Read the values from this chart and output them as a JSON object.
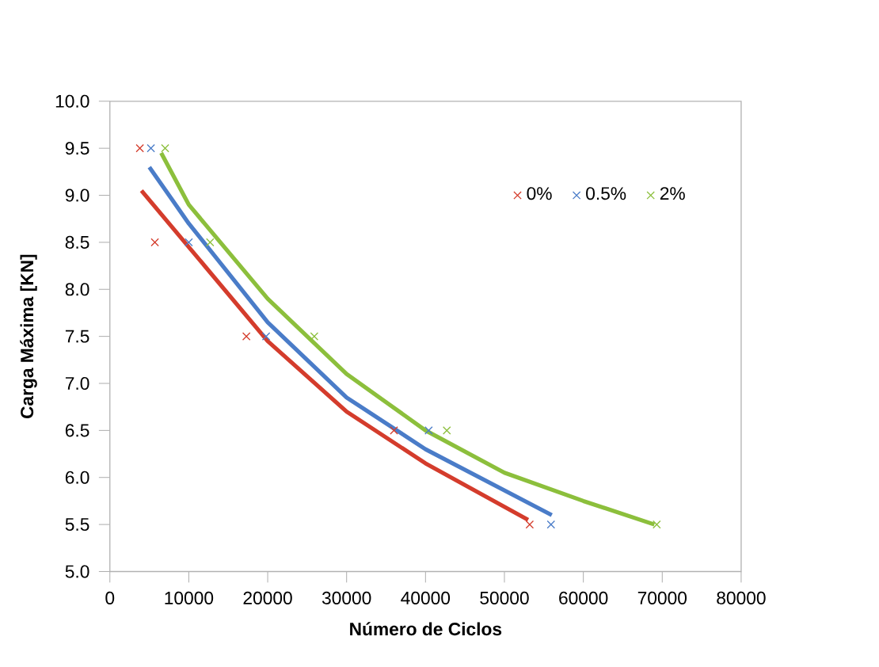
{
  "chart_data": {
    "type": "scatter",
    "xlabel": "Número de Ciclos",
    "ylabel": "Carga Máxima [KN]",
    "marker": "cross",
    "legend": "top right",
    "grid": false,
    "xlim": [
      0,
      80000
    ],
    "xticks": [
      0,
      10000,
      20000,
      30000,
      40000,
      50000,
      60000,
      70000,
      80000
    ],
    "ylim": [
      5,
      10
    ],
    "yticks": [
      {
        "value": 5,
        "label": "5.0"
      },
      {
        "value": 5.5,
        "label": "5.5"
      },
      {
        "value": 6,
        "label": "6.0"
      },
      {
        "value": 6.5,
        "label": "6.5"
      },
      {
        "value": 7,
        "label": "7.0"
      },
      {
        "value": 7.5,
        "label": "7.5"
      },
      {
        "value": 8,
        "label": "8.0"
      },
      {
        "value": 8.5,
        "label": "8.5"
      },
      {
        "value": 9,
        "label": "9.0"
      },
      {
        "value": 9.5,
        "label": "9.5"
      },
      {
        "value": 10,
        "label": "10.0"
      }
    ],
    "series": [
      {
        "name": "0%",
        "color": "#d43c2c",
        "x": [
          3800,
          5700,
          17300,
          36000,
          53200
        ],
        "values": [
          9.5,
          8.5,
          7.5,
          6.5,
          5.5
        ]
      },
      {
        "name": "0.5%",
        "color": "#4a7cc8",
        "x": [
          5200,
          10000,
          19800,
          40400,
          55900
        ],
        "values": [
          9.5,
          8.5,
          7.5,
          6.5,
          5.5
        ]
      },
      {
        "name": "2%",
        "color": "#8cbf3c",
        "x": [
          7000,
          12700,
          25900,
          42700,
          69300
        ],
        "values": [
          9.5,
          8.5,
          7.5,
          6.5,
          5.5
        ]
      },
      {
        "type": "line",
        "marker": "none",
        "color": "#d43c2c",
        "x": [
          4000,
          10000,
          20000,
          30000,
          40000,
          53000
        ],
        "values": [
          9.05,
          8.45,
          7.45,
          6.7,
          6.15,
          5.55
        ]
      },
      {
        "type": "line",
        "marker": "none",
        "color": "#4a7cc8",
        "x": [
          5000,
          10000,
          20000,
          30000,
          40000,
          56000
        ],
        "values": [
          9.3,
          8.7,
          7.65,
          6.85,
          6.3,
          5.6
        ]
      },
      {
        "type": "line",
        "marker": "none",
        "color": "#8cbf3c",
        "x": [
          6500,
          10000,
          20000,
          30000,
          40000,
          50000,
          60000,
          69000
        ],
        "values": [
          9.45,
          8.9,
          7.9,
          7.1,
          6.5,
          6.05,
          5.75,
          5.5
        ]
      }
    ]
  }
}
